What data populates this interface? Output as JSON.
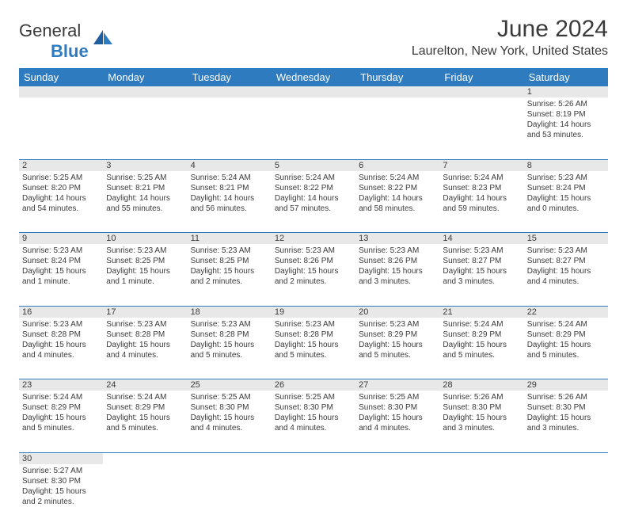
{
  "logo": {
    "text1": "General",
    "text2": "Blue"
  },
  "title": "June 2024",
  "location": "Laurelton, New York, United States",
  "colors": {
    "header_bg": "#2f7bbf",
    "daynum_bg": "#e8e8e8",
    "text": "#3a3a3a",
    "border": "#2f7bbf"
  },
  "dayHeaders": [
    "Sunday",
    "Monday",
    "Tuesday",
    "Wednesday",
    "Thursday",
    "Friday",
    "Saturday"
  ],
  "weeks": [
    [
      null,
      null,
      null,
      null,
      null,
      null,
      {
        "n": "1",
        "sr": "Sunrise: 5:26 AM",
        "ss": "Sunset: 8:19 PM",
        "dl": "Daylight: 14 hours and 53 minutes."
      }
    ],
    [
      {
        "n": "2",
        "sr": "Sunrise: 5:25 AM",
        "ss": "Sunset: 8:20 PM",
        "dl": "Daylight: 14 hours and 54 minutes."
      },
      {
        "n": "3",
        "sr": "Sunrise: 5:25 AM",
        "ss": "Sunset: 8:21 PM",
        "dl": "Daylight: 14 hours and 55 minutes."
      },
      {
        "n": "4",
        "sr": "Sunrise: 5:24 AM",
        "ss": "Sunset: 8:21 PM",
        "dl": "Daylight: 14 hours and 56 minutes."
      },
      {
        "n": "5",
        "sr": "Sunrise: 5:24 AM",
        "ss": "Sunset: 8:22 PM",
        "dl": "Daylight: 14 hours and 57 minutes."
      },
      {
        "n": "6",
        "sr": "Sunrise: 5:24 AM",
        "ss": "Sunset: 8:22 PM",
        "dl": "Daylight: 14 hours and 58 minutes."
      },
      {
        "n": "7",
        "sr": "Sunrise: 5:24 AM",
        "ss": "Sunset: 8:23 PM",
        "dl": "Daylight: 14 hours and 59 minutes."
      },
      {
        "n": "8",
        "sr": "Sunrise: 5:23 AM",
        "ss": "Sunset: 8:24 PM",
        "dl": "Daylight: 15 hours and 0 minutes."
      }
    ],
    [
      {
        "n": "9",
        "sr": "Sunrise: 5:23 AM",
        "ss": "Sunset: 8:24 PM",
        "dl": "Daylight: 15 hours and 1 minute."
      },
      {
        "n": "10",
        "sr": "Sunrise: 5:23 AM",
        "ss": "Sunset: 8:25 PM",
        "dl": "Daylight: 15 hours and 1 minute."
      },
      {
        "n": "11",
        "sr": "Sunrise: 5:23 AM",
        "ss": "Sunset: 8:25 PM",
        "dl": "Daylight: 15 hours and 2 minutes."
      },
      {
        "n": "12",
        "sr": "Sunrise: 5:23 AM",
        "ss": "Sunset: 8:26 PM",
        "dl": "Daylight: 15 hours and 2 minutes."
      },
      {
        "n": "13",
        "sr": "Sunrise: 5:23 AM",
        "ss": "Sunset: 8:26 PM",
        "dl": "Daylight: 15 hours and 3 minutes."
      },
      {
        "n": "14",
        "sr": "Sunrise: 5:23 AM",
        "ss": "Sunset: 8:27 PM",
        "dl": "Daylight: 15 hours and 3 minutes."
      },
      {
        "n": "15",
        "sr": "Sunrise: 5:23 AM",
        "ss": "Sunset: 8:27 PM",
        "dl": "Daylight: 15 hours and 4 minutes."
      }
    ],
    [
      {
        "n": "16",
        "sr": "Sunrise: 5:23 AM",
        "ss": "Sunset: 8:28 PM",
        "dl": "Daylight: 15 hours and 4 minutes."
      },
      {
        "n": "17",
        "sr": "Sunrise: 5:23 AM",
        "ss": "Sunset: 8:28 PM",
        "dl": "Daylight: 15 hours and 4 minutes."
      },
      {
        "n": "18",
        "sr": "Sunrise: 5:23 AM",
        "ss": "Sunset: 8:28 PM",
        "dl": "Daylight: 15 hours and 5 minutes."
      },
      {
        "n": "19",
        "sr": "Sunrise: 5:23 AM",
        "ss": "Sunset: 8:28 PM",
        "dl": "Daylight: 15 hours and 5 minutes."
      },
      {
        "n": "20",
        "sr": "Sunrise: 5:23 AM",
        "ss": "Sunset: 8:29 PM",
        "dl": "Daylight: 15 hours and 5 minutes."
      },
      {
        "n": "21",
        "sr": "Sunrise: 5:24 AM",
        "ss": "Sunset: 8:29 PM",
        "dl": "Daylight: 15 hours and 5 minutes."
      },
      {
        "n": "22",
        "sr": "Sunrise: 5:24 AM",
        "ss": "Sunset: 8:29 PM",
        "dl": "Daylight: 15 hours and 5 minutes."
      }
    ],
    [
      {
        "n": "23",
        "sr": "Sunrise: 5:24 AM",
        "ss": "Sunset: 8:29 PM",
        "dl": "Daylight: 15 hours and 5 minutes."
      },
      {
        "n": "24",
        "sr": "Sunrise: 5:24 AM",
        "ss": "Sunset: 8:29 PM",
        "dl": "Daylight: 15 hours and 5 minutes."
      },
      {
        "n": "25",
        "sr": "Sunrise: 5:25 AM",
        "ss": "Sunset: 8:30 PM",
        "dl": "Daylight: 15 hours and 4 minutes."
      },
      {
        "n": "26",
        "sr": "Sunrise: 5:25 AM",
        "ss": "Sunset: 8:30 PM",
        "dl": "Daylight: 15 hours and 4 minutes."
      },
      {
        "n": "27",
        "sr": "Sunrise: 5:25 AM",
        "ss": "Sunset: 8:30 PM",
        "dl": "Daylight: 15 hours and 4 minutes."
      },
      {
        "n": "28",
        "sr": "Sunrise: 5:26 AM",
        "ss": "Sunset: 8:30 PM",
        "dl": "Daylight: 15 hours and 3 minutes."
      },
      {
        "n": "29",
        "sr": "Sunrise: 5:26 AM",
        "ss": "Sunset: 8:30 PM",
        "dl": "Daylight: 15 hours and 3 minutes."
      }
    ],
    [
      {
        "n": "30",
        "sr": "Sunrise: 5:27 AM",
        "ss": "Sunset: 8:30 PM",
        "dl": "Daylight: 15 hours and 2 minutes."
      },
      null,
      null,
      null,
      null,
      null,
      null
    ]
  ]
}
